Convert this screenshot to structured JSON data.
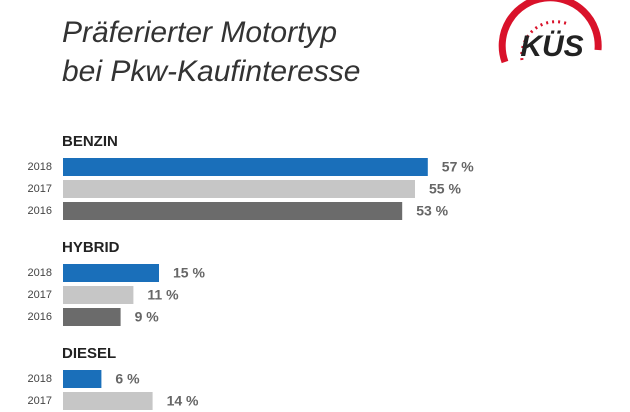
{
  "logo": "KÜS",
  "chart_data": {
    "type": "grouped-hbar",
    "title": [
      "Präferierter Motortyp",
      "bei Pkw-Kaufinteresse"
    ],
    "categories": [
      "BENZIN",
      "HYBRID",
      "DIESEL"
    ],
    "series": [
      {
        "name": "2018",
        "color": "#1a6fba",
        "values": [
          57,
          15,
          6
        ],
        "value_labels": [
          "57 %",
          "15 %",
          "6 %"
        ]
      },
      {
        "name": "2017",
        "color": "#c6c6c6",
        "values": [
          55,
          11,
          14
        ],
        "value_labels": [
          "55 %",
          "11 %",
          "14 %"
        ]
      },
      {
        "name": "2016",
        "color": "#6b6b6b",
        "values": [
          53,
          9,
          null
        ],
        "value_labels": [
          "53 %",
          "9 %",
          null
        ]
      }
    ]
  }
}
